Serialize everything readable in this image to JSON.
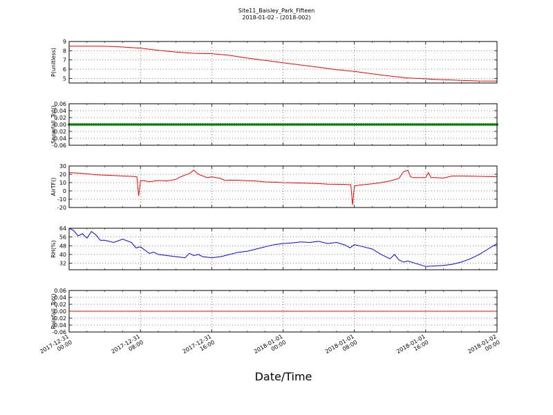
{
  "title": "Site11_Baisley_Park_Fifteen",
  "subtitle": "2018-01-02 - (2018-002)",
  "xlabel": "Date/Time",
  "x_ticks": [
    {
      "l1": "2017-12-31",
      "l2": "00:00"
    },
    {
      "l1": "2017-12-31",
      "l2": "08:00"
    },
    {
      "l1": "2017-12-31",
      "l2": "16:00"
    },
    {
      "l1": "2018-01-01",
      "l2": "00:00"
    },
    {
      "l1": "2018-01-01",
      "l2": "08:00"
    },
    {
      "l1": "2018-01-01",
      "l2": "16:00"
    },
    {
      "l1": "2018-01-02",
      "l2": "00:00"
    }
  ],
  "chart_data": [
    {
      "type": "line",
      "ylabel": "P(unitless)",
      "ylim": [
        4.5,
        9
      ],
      "yticks": [
        5,
        6,
        7,
        8,
        9
      ],
      "xlim": [
        0,
        48
      ],
      "grid": true,
      "color": "#ff0000",
      "x": [
        0,
        2,
        4,
        6,
        8,
        10,
        12,
        14,
        16,
        18,
        20,
        22,
        24,
        26,
        28,
        30,
        32,
        34,
        36,
        38,
        40,
        42,
        44,
        46,
        48
      ],
      "y": [
        8.5,
        8.5,
        8.48,
        8.4,
        8.28,
        8.05,
        7.85,
        7.72,
        7.68,
        7.5,
        7.2,
        6.95,
        6.7,
        6.45,
        6.2,
        5.95,
        5.75,
        5.5,
        5.25,
        5.05,
        4.95,
        4.85,
        4.78,
        4.72,
        4.7
      ]
    },
    {
      "type": "scatter",
      "ylabel": "Snowfall_Tot()",
      "ylim": [
        -0.06,
        0.06
      ],
      "yticks": [
        -0.06,
        -0.04,
        -0.02,
        0.0,
        0.02,
        0.04,
        0.06
      ],
      "xlim": [
        0,
        48
      ],
      "grid": true,
      "color": "#008000",
      "x": [
        0,
        48
      ],
      "y": [
        0,
        0
      ]
    },
    {
      "type": "line",
      "ylabel": "AirTF()",
      "ylim": [
        -20,
        30
      ],
      "yticks": [
        -20,
        -10,
        0,
        10,
        20,
        30
      ],
      "xlim": [
        0,
        48
      ],
      "grid": true,
      "color": "#ff0000",
      "x": [
        0,
        1,
        2,
        3,
        4,
        5,
        6,
        7,
        7.6,
        7.8,
        8.0,
        8.3,
        9,
        10,
        11,
        12,
        12.5,
        13,
        13.5,
        14,
        14.5,
        15,
        15.5,
        16,
        17,
        17.5,
        18,
        19,
        20,
        21,
        22,
        23,
        24,
        25,
        26,
        27,
        28,
        29,
        30,
        31,
        31.6,
        31.8,
        32.0,
        32.3,
        33,
        34,
        35,
        36,
        37,
        37.5,
        38,
        38.3,
        38.6,
        39,
        40,
        40.3,
        40.6,
        41,
        42,
        43,
        44,
        45,
        46,
        47,
        48
      ],
      "y": [
        22,
        21.5,
        20.5,
        19.5,
        19,
        18.5,
        18,
        17.5,
        17,
        -6,
        12,
        12.5,
        11,
        12.5,
        12,
        14,
        17,
        19,
        21,
        25,
        20,
        18,
        16,
        17,
        15,
        12.5,
        13,
        12.8,
        12.3,
        11.8,
        10.8,
        10.5,
        10,
        9.8,
        9.5,
        9.2,
        8.8,
        8.2,
        8,
        7.8,
        7.5,
        -17,
        6,
        6.5,
        7.5,
        8.5,
        10,
        12,
        15,
        23,
        25,
        17,
        16,
        16,
        16,
        22,
        16,
        16,
        15.5,
        18,
        18,
        17.8,
        17.5,
        17.2,
        17
      ]
    },
    {
      "type": "line",
      "ylabel": "RH(%)",
      "ylim": [
        26,
        64
      ],
      "yticks": [
        32,
        40,
        48,
        56,
        64
      ],
      "xlim": [
        0,
        48
      ],
      "grid": true,
      "color": "#0000ff",
      "x": [
        0,
        0.5,
        1,
        1.5,
        2,
        2.5,
        3,
        3.5,
        4,
        5,
        6,
        7,
        7.5,
        8,
        8.5,
        9,
        9.5,
        10,
        11,
        12,
        13,
        13.5,
        14,
        14.5,
        15,
        16,
        17,
        18,
        19,
        20,
        21,
        22,
        23,
        24,
        25,
        26,
        27,
        28,
        29,
        30,
        31,
        31.5,
        32,
        33,
        34,
        35,
        36,
        36.5,
        37,
        37.5,
        38,
        39,
        40,
        41,
        42,
        43,
        44,
        45,
        46,
        47,
        48
      ],
      "y": [
        64,
        62,
        57,
        59,
        55,
        61,
        58,
        53,
        53,
        51,
        54,
        51,
        46,
        47,
        44,
        41,
        42,
        40,
        39,
        38,
        37,
        41,
        39,
        40,
        38,
        37,
        38,
        40,
        42,
        43,
        45,
        47,
        49,
        50,
        50.5,
        51.5,
        51,
        52,
        50,
        51,
        48.5,
        46,
        49,
        47,
        45,
        40,
        36,
        40,
        35,
        33,
        34,
        31.5,
        29,
        29.5,
        30,
        31,
        33,
        36,
        40,
        45,
        50
      ]
    },
    {
      "type": "line",
      "ylabel": "Rainfall_Tot()",
      "ylim": [
        -0.06,
        0.06
      ],
      "yticks": [
        -0.06,
        -0.04,
        -0.02,
        0.0,
        0.02,
        0.04,
        0.06
      ],
      "xlim": [
        0,
        48
      ],
      "grid": true,
      "color": "#ff0000",
      "x": [
        0,
        48
      ],
      "y": [
        0,
        0
      ]
    }
  ]
}
